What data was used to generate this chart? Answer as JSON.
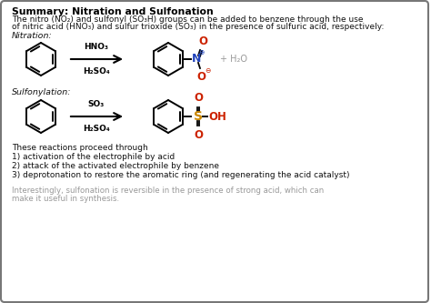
{
  "title": "Summary: Nitration and Sulfonation",
  "intro_line1": "The nitro (NO₂) and sulfonyl (SO₃H) groups can be added to benzene through the use",
  "intro_line2": "of nitric acid (HNO₃) and sulfur trioxide (SO₃) in the presence of sulfuric acid, respectively:",
  "nitration_label": "Nitration:",
  "nitration_reagent1": "HNO₃",
  "nitration_reagent2": "H₂SO₄",
  "sulfonylation_label": "Sulfonylation:",
  "sulfonylation_reagent1": "SO₃",
  "sulfonylation_reagent2": "H₂SO₄",
  "mechanism_title": "These reactions proceed through",
  "mechanism_1": "1) activation of the electrophile by acid",
  "mechanism_2": "2) attack of the activated electrophile by benzene",
  "mechanism_3": "3) deprotonation to restore the aromatic ring (and regenerating the acid catalyst)",
  "footer_line1": "Interestingly, sulfonation is reversible in the presence of strong acid, which can",
  "footer_line2": "make it useful in synthesis.",
  "bg_color": "#ffffff",
  "border_color": "#777777",
  "title_color": "#000000",
  "text_color": "#111111",
  "footer_color": "#999999",
  "reagent_color": "#000000",
  "N_color": "#2244bb",
  "S_color": "#cc8800",
  "O_color": "#cc2200",
  "H2O_color": "#999999"
}
